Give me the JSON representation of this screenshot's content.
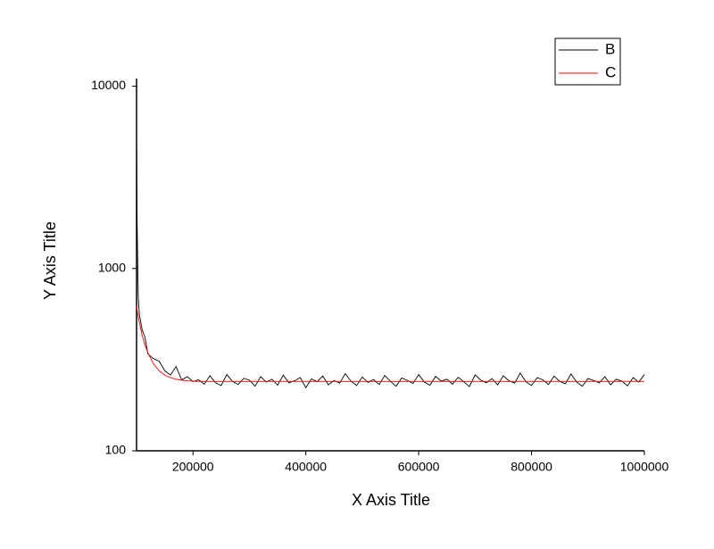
{
  "chart_data": {
    "type": "line",
    "x_label": "X Axis Title",
    "y_label": "Y Axis Title",
    "log_y": true,
    "legend": "upper right",
    "xlim": [
      100000,
      1000000
    ],
    "xticks": [
      200000,
      400000,
      600000,
      800000,
      1000000
    ],
    "ylim": [
      100,
      11000
    ],
    "yticks": [
      100,
      1000,
      10000
    ],
    "x": [
      100000,
      101000,
      103000,
      105000,
      110000,
      115000,
      120000,
      130000,
      140000,
      150000,
      160000,
      170000,
      180000,
      190000,
      200000,
      210000,
      220000,
      230000,
      240000,
      250000,
      260000,
      270000,
      280000,
      290000,
      300000,
      310000,
      320000,
      330000,
      340000,
      350000,
      360000,
      370000,
      380000,
      390000,
      400000,
      410000,
      420000,
      430000,
      440000,
      450000,
      460000,
      470000,
      480000,
      490000,
      500000,
      510000,
      520000,
      530000,
      540000,
      550000,
      560000,
      570000,
      580000,
      590000,
      600000,
      610000,
      620000,
      630000,
      640000,
      650000,
      660000,
      670000,
      680000,
      690000,
      700000,
      710000,
      720000,
      730000,
      740000,
      750000,
      760000,
      770000,
      780000,
      790000,
      800000,
      810000,
      820000,
      830000,
      840000,
      850000,
      860000,
      870000,
      880000,
      890000,
      900000,
      910000,
      920000,
      930000,
      940000,
      950000,
      960000,
      970000,
      980000,
      990000,
      1000000
    ],
    "series": [
      {
        "name": "B",
        "color": "#000000",
        "values": [
          5500,
          1800,
          700,
          560,
          460,
          420,
          340,
          320,
          310,
          275,
          260,
          290,
          245,
          255,
          240,
          245,
          232,
          258,
          236,
          228,
          262,
          240,
          231,
          250,
          244,
          226,
          255,
          238,
          247,
          229,
          260,
          236,
          242,
          252,
          222,
          248,
          239,
          257,
          230,
          243,
          235,
          265,
          241,
          228,
          254,
          237,
          246,
          231,
          259,
          240,
          226,
          251,
          243,
          234,
          262,
          238,
          229,
          256,
          241,
          247,
          232,
          253,
          239,
          225,
          261,
          244,
          236,
          249,
          230,
          258,
          242,
          235,
          267,
          239,
          228,
          252,
          245,
          231,
          257,
          240,
          233,
          264,
          238,
          226,
          249,
          243,
          236,
          255,
          230,
          247,
          241,
          227,
          252,
          238,
          262
        ]
      },
      {
        "name": "C",
        "color": "#ff0000",
        "values": [
          620,
          590,
          545,
          505,
          430,
          380,
          345,
          300,
          275,
          260,
          252,
          247,
          244,
          242,
          241,
          240,
          240,
          240,
          240,
          240,
          240,
          240,
          240,
          240,
          240,
          240,
          240,
          240,
          240,
          240,
          240,
          240,
          240,
          240,
          240,
          240,
          240,
          240,
          240,
          240,
          240,
          240,
          240,
          240,
          240,
          240,
          240,
          240,
          240,
          240,
          240,
          240,
          240,
          240,
          240,
          240,
          240,
          240,
          240,
          240,
          240,
          240,
          240,
          240,
          240,
          240,
          240,
          240,
          240,
          240,
          240,
          240,
          240,
          240,
          240,
          240,
          240,
          240,
          240,
          240,
          240,
          240,
          240,
          240,
          240,
          240,
          240,
          240,
          240,
          240,
          240,
          240,
          240,
          240,
          240
        ]
      }
    ]
  }
}
